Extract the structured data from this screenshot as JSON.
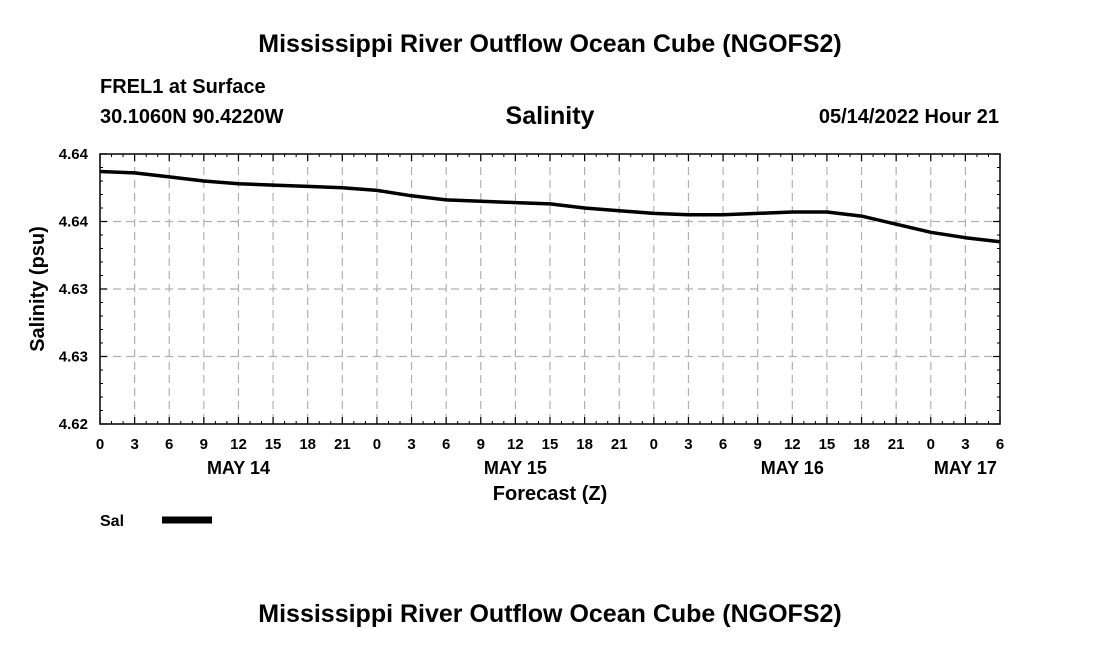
{
  "header": {
    "title": "Mississippi River Outflow Ocean Cube (NGOFS2)",
    "station": "FREL1 at Surface",
    "coords": "30.1060N  90.4220W",
    "datetime": "05/14/2022 Hour 21",
    "footer_title": "Mississippi River Outflow Ocean Cube (NGOFS2)"
  },
  "legend": {
    "label": "Sal"
  },
  "chart_data": {
    "type": "line",
    "title": "Salinity",
    "xlabel": "Forecast (Z)",
    "ylabel": "Salinity (psu)",
    "xlim": [
      0,
      78
    ],
    "ylim": [
      4.62,
      4.64
    ],
    "y_ticks": [
      4.62,
      4.625,
      4.63,
      4.635,
      4.64
    ],
    "y_tick_labels": [
      "4.62",
      "4.63",
      "4.63",
      "4.64",
      "4.64"
    ],
    "x_ticks": [
      0,
      3,
      6,
      9,
      12,
      15,
      18,
      21,
      24,
      27,
      30,
      33,
      36,
      39,
      42,
      45,
      48,
      51,
      54,
      57,
      60,
      63,
      66,
      69,
      72,
      75,
      78
    ],
    "x_tick_labels": [
      "0",
      "3",
      "6",
      "9",
      "12",
      "15",
      "18",
      "21",
      "0",
      "3",
      "6",
      "9",
      "12",
      "15",
      "18",
      "21",
      "0",
      "3",
      "6",
      "9",
      "12",
      "15",
      "18",
      "21",
      "0",
      "3",
      "6"
    ],
    "date_labels": [
      {
        "label": "MAY 14",
        "x": 12
      },
      {
        "label": "MAY 15",
        "x": 36
      },
      {
        "label": "MAY 16",
        "x": 60
      },
      {
        "label": "MAY 17",
        "x": 75
      }
    ],
    "grid": true,
    "series": [
      {
        "name": "Sal",
        "color": "#000000",
        "x": [
          0,
          3,
          6,
          9,
          12,
          15,
          18,
          21,
          24,
          27,
          30,
          33,
          36,
          39,
          42,
          45,
          48,
          51,
          54,
          57,
          60,
          63,
          66,
          69,
          72,
          75,
          78
        ],
        "values": [
          4.6387,
          4.6386,
          4.6383,
          4.638,
          4.6378,
          4.6377,
          4.6376,
          4.6375,
          4.6373,
          4.6369,
          4.6366,
          4.6365,
          4.6364,
          4.6363,
          4.636,
          4.6358,
          4.6356,
          4.6355,
          4.6355,
          4.6356,
          4.6357,
          4.6357,
          4.6354,
          4.6348,
          4.6342,
          4.6338,
          4.6335
        ]
      }
    ]
  }
}
